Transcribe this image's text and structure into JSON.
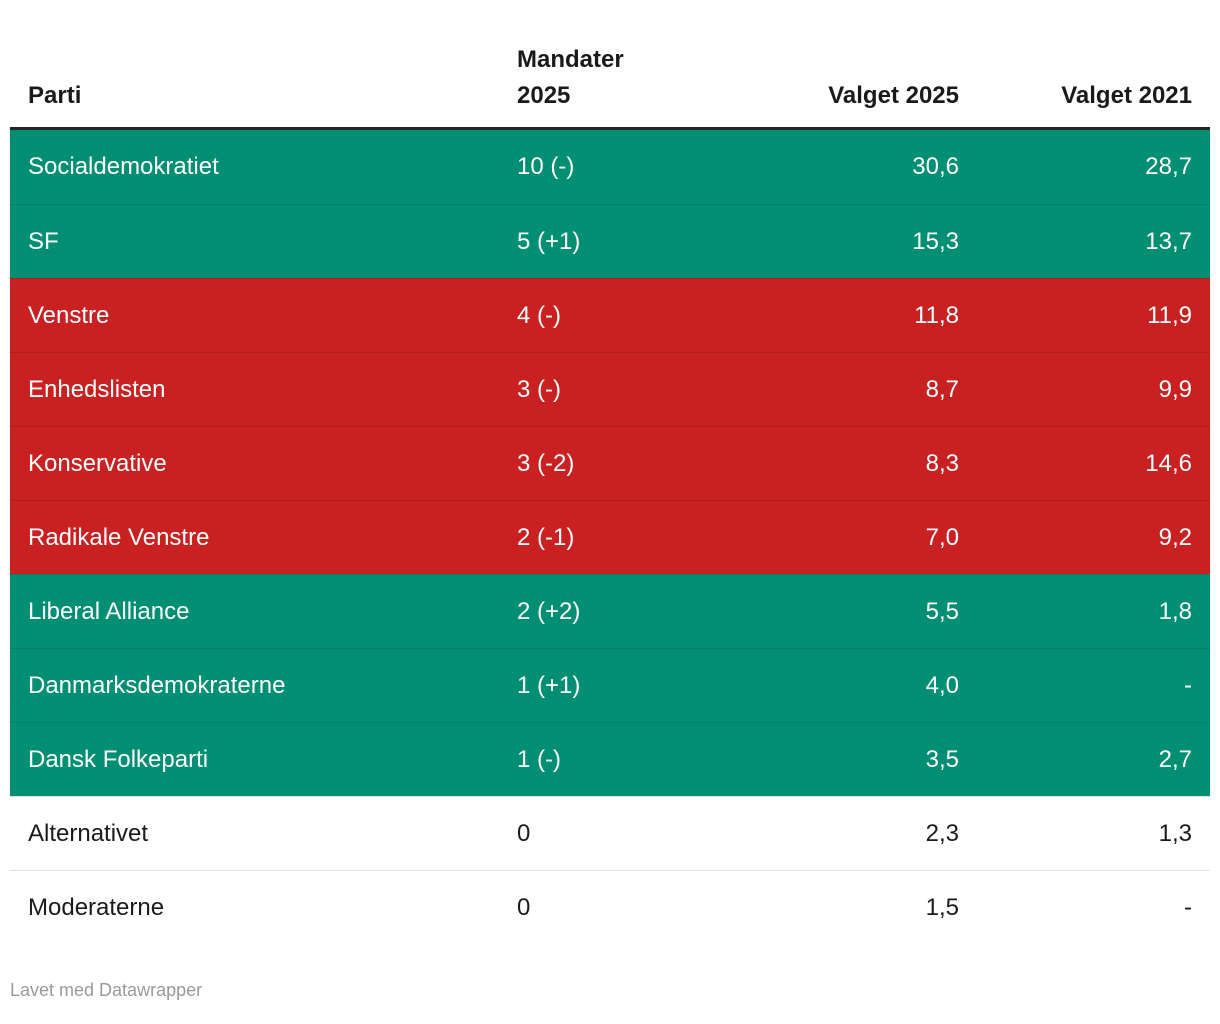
{
  "colors": {
    "green": {
      "bg": "#008f72",
      "text": "#ffffff"
    },
    "red": {
      "bg": "#c92121",
      "text": "#ffffff"
    },
    "white": {
      "bg": "#ffffff",
      "text": "#1a1a1a"
    },
    "header_text": "#1a1a1a",
    "header_border": "#252525",
    "footer_text": "#9a9a9a"
  },
  "chart_data": {
    "type": "table",
    "title": "",
    "columns": [
      "Parti",
      "Mandater 2025",
      "Valget 2025",
      "Valget 2021"
    ],
    "rows": [
      {
        "parti": "Socialdemokratiet",
        "mandater_2025": "10 (-)",
        "valget_2025": "30,6",
        "valget_2021": "28,7",
        "color": "green"
      },
      {
        "parti": "SF",
        "mandater_2025": "5 (+1)",
        "valget_2025": "15,3",
        "valget_2021": "13,7",
        "color": "green"
      },
      {
        "parti": "Venstre",
        "mandater_2025": "4 (-)",
        "valget_2025": "11,8",
        "valget_2021": "11,9",
        "color": "red"
      },
      {
        "parti": "Enhedslisten",
        "mandater_2025": "3 (-)",
        "valget_2025": "8,7",
        "valget_2021": "9,9",
        "color": "red"
      },
      {
        "parti": "Konservative",
        "mandater_2025": "3 (-2)",
        "valget_2025": "8,3",
        "valget_2021": "14,6",
        "color": "red"
      },
      {
        "parti": "Radikale Venstre",
        "mandater_2025": "2 (-1)",
        "valget_2025": "7,0",
        "valget_2021": "9,2",
        "color": "red"
      },
      {
        "parti": "Liberal Alliance",
        "mandater_2025": "2 (+2)",
        "valget_2025": "5,5",
        "valget_2021": "1,8",
        "color": "green"
      },
      {
        "parti": "Danmarksdemokraterne",
        "mandater_2025": "1 (+1)",
        "valget_2025": "4,0",
        "valget_2021": "-",
        "color": "green"
      },
      {
        "parti": "Dansk Folkeparti",
        "mandater_2025": "1 (-)",
        "valget_2025": "3,5",
        "valget_2021": "2,7",
        "color": "green"
      },
      {
        "parti": "Alternativet",
        "mandater_2025": "0",
        "valget_2025": "2,3",
        "valget_2021": "1,3",
        "color": "white"
      },
      {
        "parti": "Moderaterne",
        "mandater_2025": "0",
        "valget_2025": "1,5",
        "valget_2021": "-",
        "color": "white"
      }
    ]
  },
  "footer": {
    "credit": "Lavet med Datawrapper"
  }
}
